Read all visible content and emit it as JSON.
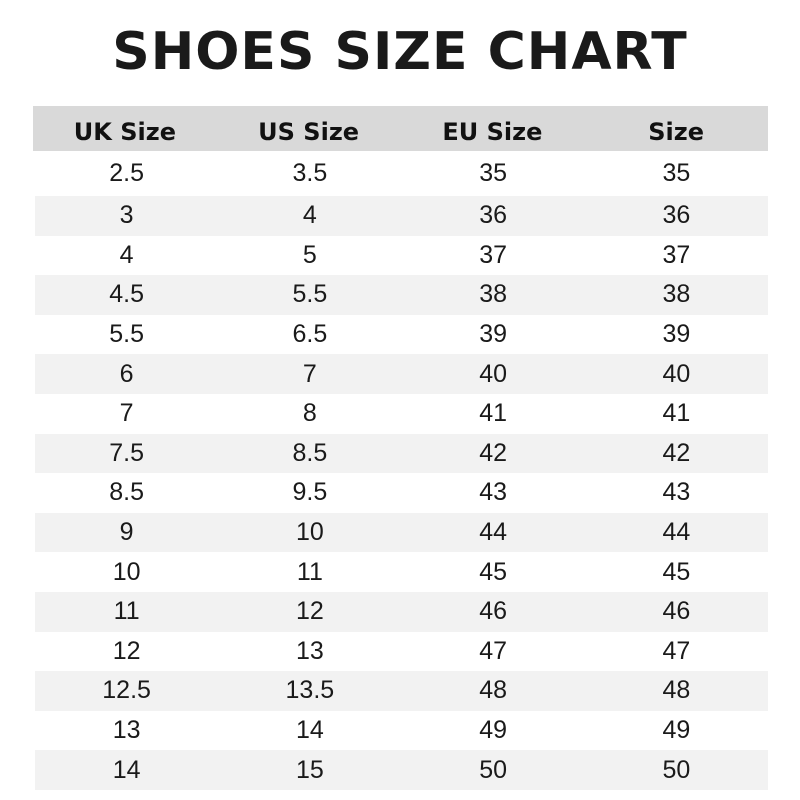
{
  "title": "SHOES SIZE CHART",
  "headers": [
    "UK Size",
    "US Size",
    "EU Size",
    "Size"
  ],
  "colors": {
    "header_bg": "#d9d9d9",
    "stripe_bg": "#f2f2f2"
  },
  "rows": [
    [
      "2.5",
      "3.5",
      "35",
      "35"
    ],
    [
      "3",
      "4",
      "36",
      "36"
    ],
    [
      "4",
      "5",
      "37",
      "37"
    ],
    [
      "4.5",
      "5.5",
      "38",
      "38"
    ],
    [
      "5.5",
      "6.5",
      "39",
      "39"
    ],
    [
      "6",
      "7",
      "40",
      "40"
    ],
    [
      "7",
      "8",
      "41",
      "41"
    ],
    [
      "7.5",
      "8.5",
      "42",
      "42"
    ],
    [
      "8.5",
      "9.5",
      "43",
      "43"
    ],
    [
      "9",
      "10",
      "44",
      "44"
    ],
    [
      "10",
      "11",
      "45",
      "45"
    ],
    [
      "11",
      "12",
      "46",
      "46"
    ],
    [
      "12",
      "13",
      "47",
      "47"
    ],
    [
      "12.5",
      "13.5",
      "48",
      "48"
    ],
    [
      "13",
      "14",
      "49",
      "49"
    ],
    [
      "14",
      "15",
      "50",
      "50"
    ]
  ]
}
